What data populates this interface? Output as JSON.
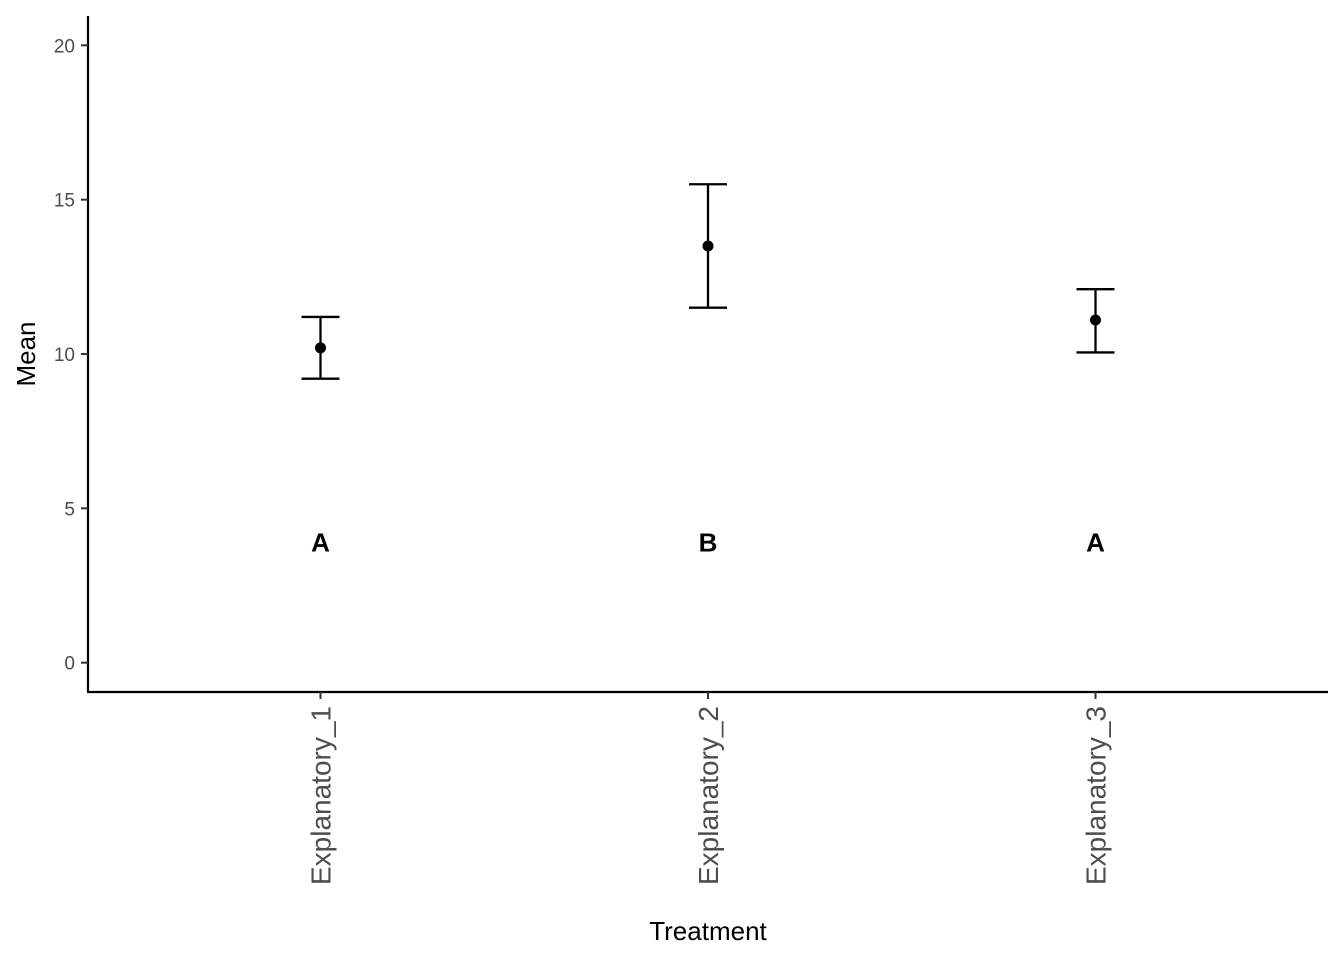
{
  "chart_data": {
    "type": "scatter",
    "title": "",
    "xlabel": "Treatment",
    "ylabel": "Mean",
    "categories": [
      "Explanatory_1",
      "Explanatory_2",
      "Explanatory_3"
    ],
    "means": [
      10.2,
      13.5,
      11.1
    ],
    "error_lower": [
      9.2,
      11.5,
      10.05
    ],
    "error_upper": [
      11.2,
      15.5,
      12.1
    ],
    "group_letters": [
      "A",
      "B",
      "A"
    ],
    "group_letter_y": 3.9,
    "ylim": [
      -0.95,
      20.95
    ],
    "y_ticks": [
      0,
      5,
      10,
      15,
      20
    ],
    "grid": false,
    "legend": "none",
    "colors": {
      "marks": "#000000",
      "tick_text": "#4d4d4d"
    }
  }
}
